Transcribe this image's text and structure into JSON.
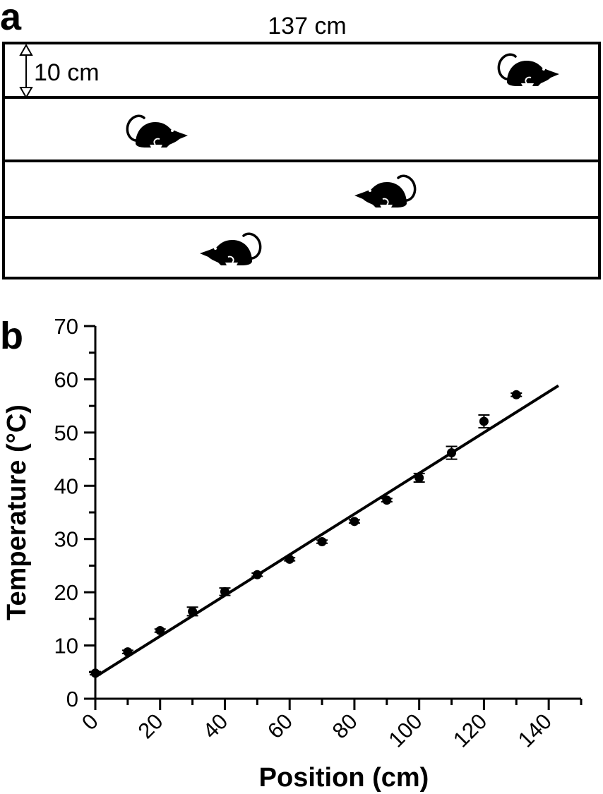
{
  "panel_a": {
    "label": "a",
    "width_text": "137 cm",
    "lane_text": "10 cm",
    "lanes": 4,
    "mouse_icon": "mouse-icon"
  },
  "panel_b": {
    "label": "b"
  },
  "chart_data": {
    "type": "scatter",
    "title": "",
    "xlabel": "Position (cm)",
    "ylabel": "Temperature (°C)",
    "xlim": [
      0,
      150
    ],
    "ylim": [
      0,
      70
    ],
    "xticks": [
      0,
      20,
      40,
      60,
      80,
      100,
      120,
      140
    ],
    "yticks": [
      0,
      10,
      20,
      30,
      40,
      50,
      60,
      70
    ],
    "grid": false,
    "series": [
      {
        "x": [
          0,
          10,
          20,
          30,
          40,
          50,
          60,
          70,
          80,
          90,
          100,
          110,
          120,
          130
        ],
        "y": [
          4.8,
          8.8,
          12.8,
          16.4,
          20.1,
          23.3,
          26.2,
          29.5,
          33.3,
          37.3,
          41.5,
          46.2,
          52.1,
          57.1
        ],
        "err": [
          0.3,
          0.3,
          0.3,
          0.8,
          0.7,
          0.3,
          0.3,
          0.3,
          0.3,
          0.3,
          0.8,
          1.2,
          1.2,
          0.3
        ]
      }
    ],
    "fit_line": {
      "x": [
        0,
        143
      ],
      "y": [
        4.1,
        58.8
      ]
    }
  }
}
